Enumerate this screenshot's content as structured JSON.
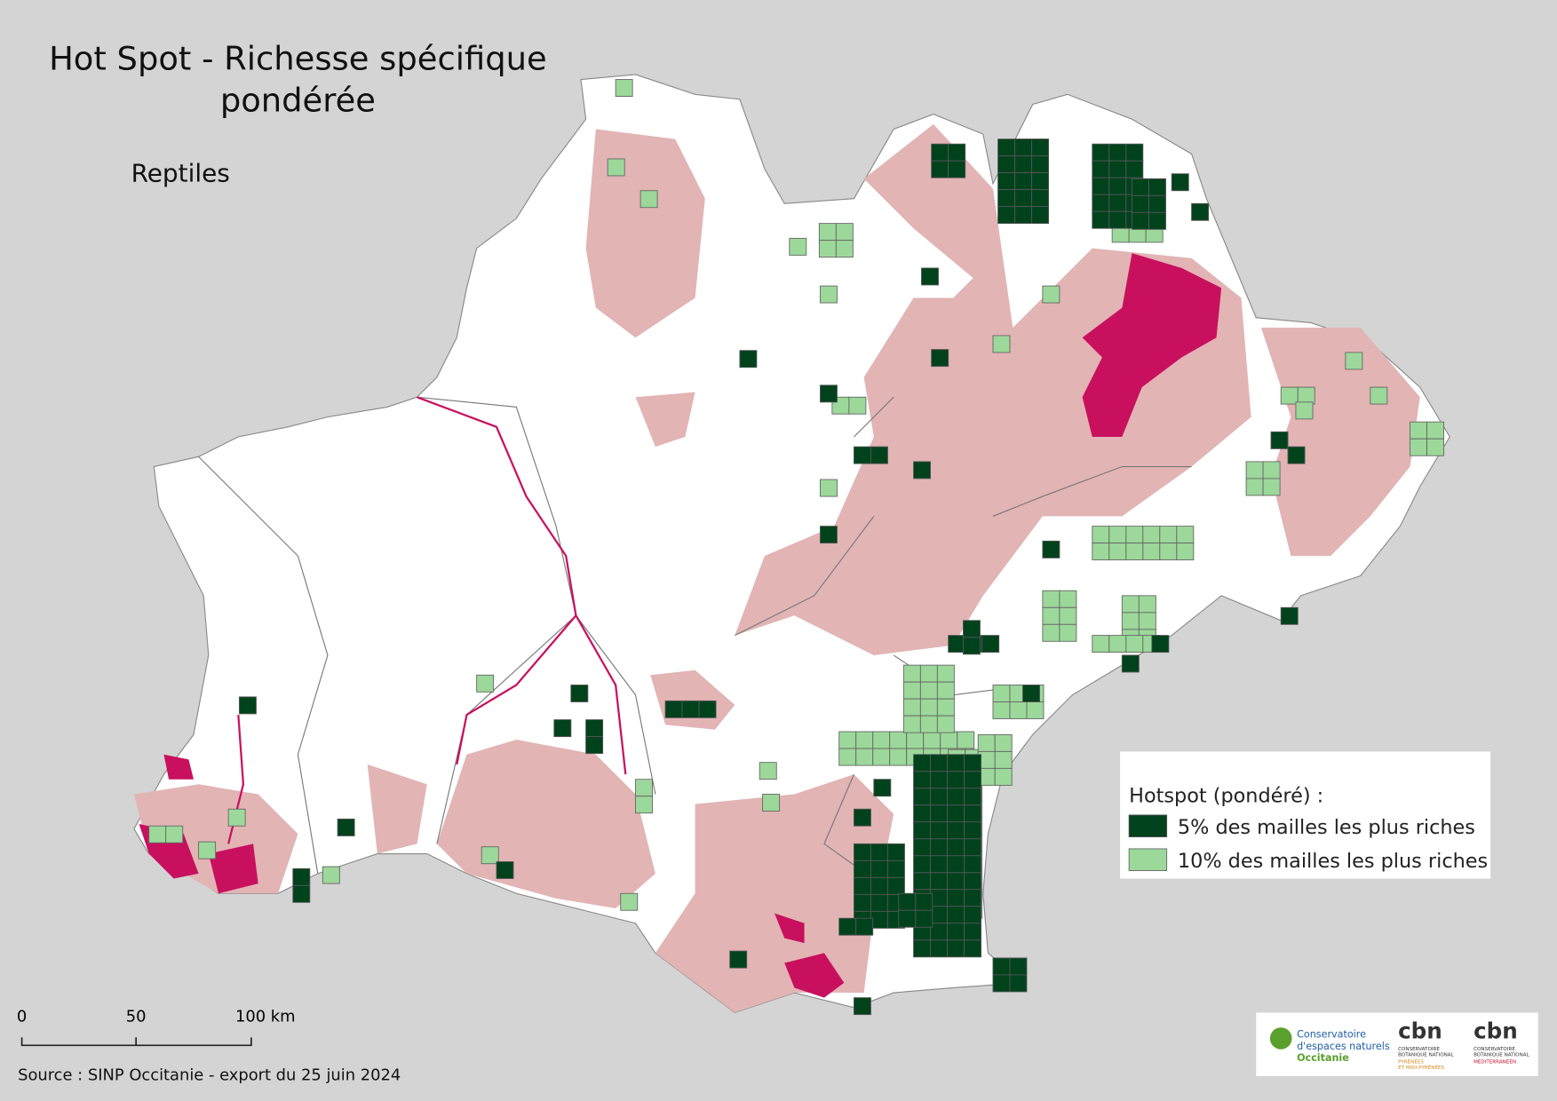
{
  "header": {
    "title_lines": [
      "Hot Spot - Richesse spécifique",
      "pondérée"
    ],
    "subtitle": "Reptiles"
  },
  "legend": {
    "title": "Hotspot (pondéré) :",
    "items": [
      "5% des mailles les plus riches",
      "10% des mailles les plus riches"
    ]
  },
  "scale_bar": {
    "labels": [
      "0",
      "50",
      "100 km"
    ]
  },
  "source": "Source : SINP Occitanie - export du 25 juin 2024",
  "logos": {
    "cen": [
      "Conservatoire",
      "d'espaces naturels",
      "Occitanie"
    ],
    "cbn_pmp": [
      "cbn",
      "CONSERVATOIRE",
      "BOTANIQUE NATIONAL",
      "PYRÉNÉES",
      "ET MIDI-PYRÉNÉES"
    ],
    "cbn_med": [
      "cbn",
      "CONSERVATOIRE",
      "BOTANIQUE NATIONAL",
      "MÉDITERRANÉEN"
    ]
  }
}
